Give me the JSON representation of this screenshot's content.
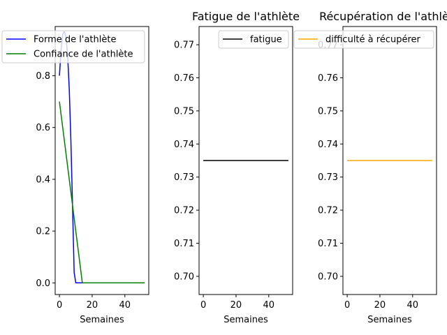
{
  "chart_data": [
    {
      "type": "line",
      "title": "",
      "xlabel": "Semaines",
      "ylabel": "",
      "xlim": [
        -2.6,
        54.6
      ],
      "ylim": [
        -0.045,
        0.99
      ],
      "xticks": [
        0,
        20,
        40
      ],
      "yticks": [
        0.0,
        0.2,
        0.4,
        0.6,
        0.8
      ],
      "ytick_labels": [
        "0.0",
        "0.2",
        "0.4",
        "0.6",
        "0.8"
      ],
      "legend": "top-right",
      "series": [
        {
          "name": "Forme de l'athlète",
          "color": "#0000ff",
          "x": [
            0,
            1,
            2,
            3,
            4,
            5,
            6,
            7,
            8,
            9,
            10,
            11,
            12,
            14,
            16,
            20,
            30,
            40,
            52
          ],
          "y": [
            0.8,
            0.9,
            0.96,
            0.97,
            0.95,
            0.88,
            0.75,
            0.55,
            0.3,
            0.04,
            0.0,
            0.0,
            0.0,
            0.0,
            0.0,
            0.0,
            0.0,
            0.0,
            0.0
          ]
        },
        {
          "name": "Confiance de l'athlète",
          "color": "#008000",
          "x": [
            0,
            14,
            20,
            30,
            40,
            52
          ],
          "y": [
            0.7,
            0.0,
            0.0,
            0.0,
            0.0,
            0.0
          ]
        }
      ]
    },
    {
      "type": "line",
      "title": "Fatigue de l'athlète",
      "xlabel": "Semaines",
      "ylabel": "",
      "xlim": [
        -2.6,
        54.6
      ],
      "ylim": [
        0.6945,
        0.7755
      ],
      "xticks": [
        0,
        20,
        40
      ],
      "yticks": [
        0.7,
        0.71,
        0.72,
        0.73,
        0.74,
        0.75,
        0.76,
        0.77
      ],
      "ytick_labels": [
        "0.70",
        "0.71",
        "0.72",
        "0.73",
        "0.74",
        "0.75",
        "0.76",
        "0.77"
      ],
      "legend": "top-right",
      "series": [
        {
          "name": "fatigue",
          "color": "#000000",
          "x": [
            0,
            52
          ],
          "y": [
            0.735,
            0.735
          ]
        }
      ]
    },
    {
      "type": "line",
      "title": "Récupération de l'athlète",
      "xlabel": "Semaines",
      "ylabel": "",
      "xlim": [
        -2.6,
        54.6
      ],
      "ylim": [
        0.6945,
        0.7755
      ],
      "xticks": [
        0,
        20,
        40
      ],
      "yticks": [
        0.7,
        0.71,
        0.72,
        0.73,
        0.74,
        0.75,
        0.76,
        0.77
      ],
      "ytick_labels": [
        "0.70",
        "0.71",
        "0.72",
        "0.73",
        "0.74",
        "0.75",
        "0.76",
        "0.77"
      ],
      "legend": "top-right",
      "series": [
        {
          "name": "difficulté à récupérer",
          "color": "#ffa500",
          "x": [
            0,
            52
          ],
          "y": [
            0.735,
            0.735
          ]
        }
      ]
    }
  ]
}
